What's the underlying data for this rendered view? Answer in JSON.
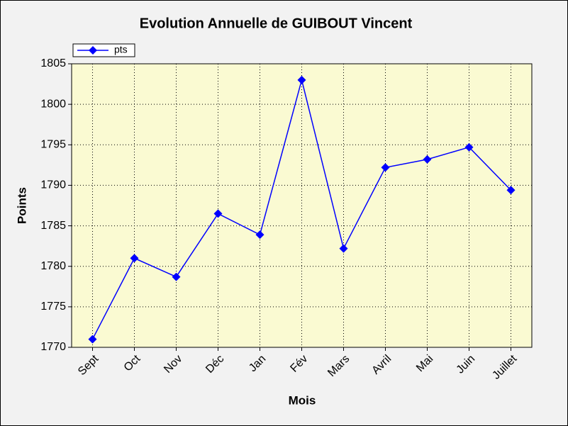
{
  "chart_data": {
    "type": "line",
    "title": "Evolution Annuelle de GUIBOUT Vincent",
    "x_label": "Mois",
    "y_label": "Points",
    "categories": [
      "Sept",
      "Oct",
      "Nov",
      "Déc",
      "Jan",
      "Fév",
      "Mars",
      "Avril",
      "Mai",
      "Juin",
      "Juillet"
    ],
    "series": [
      {
        "name": "pts",
        "color": "#0000ff",
        "values": [
          1771,
          1781,
          1778.7,
          1786.5,
          1783.9,
          1803,
          1782.2,
          1792.2,
          1793.2,
          1794.7,
          1789.4
        ]
      }
    ],
    "ylim": [
      1770,
      1805
    ],
    "yticks": [
      1770,
      1775,
      1780,
      1785,
      1790,
      1795,
      1800,
      1805
    ],
    "grid": true,
    "legend": "top-left",
    "plot_background": "#fafad2"
  }
}
